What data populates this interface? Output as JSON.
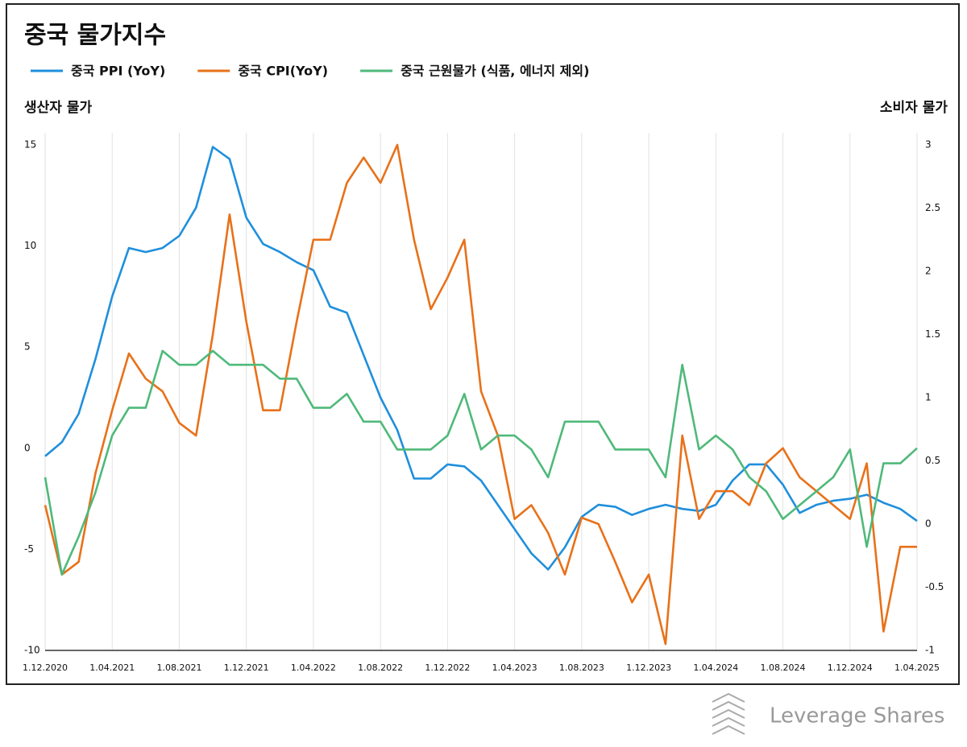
{
  "chart_data": {
    "type": "line",
    "title": "중국 물가지수",
    "y_label": "생산자 물가",
    "y2_label": "소비자 물가",
    "categories": [
      "1.12.2020",
      null,
      null,
      null,
      "1.04.2021",
      null,
      null,
      null,
      "1.08.2021",
      null,
      null,
      null,
      "1.12.2021",
      null,
      null,
      null,
      "1.04.2022",
      null,
      null,
      null,
      "1.08.2022",
      null,
      null,
      null,
      "1.12.2022",
      null,
      null,
      null,
      "1.04.2023",
      null,
      null,
      null,
      "1.08.2023",
      null,
      null,
      null,
      "1.12.2023",
      null,
      null,
      null,
      "1.04.2024",
      null,
      null,
      null,
      "1.08.2024",
      null,
      null,
      null,
      "1.12.2024",
      null,
      null,
      null,
      "1.04.2025"
    ],
    "series": [
      {
        "name": "중국 PPI (YoY)",
        "color": "#1f8fdc",
        "axis": "y",
        "values": [
          -0.4,
          0.3,
          1.7,
          4.4,
          7.5,
          9.9,
          9.7,
          9.9,
          10.5,
          11.9,
          14.9,
          14.3,
          11.4,
          10.1,
          9.7,
          9.2,
          8.8,
          7.0,
          6.7,
          4.6,
          2.5,
          0.9,
          -1.5,
          -1.5,
          -0.8,
          -0.9,
          -1.6,
          -2.8,
          -4.0,
          -5.2,
          -6.0,
          -4.9,
          -3.4,
          -2.8,
          -2.9,
          -3.3,
          -3.0,
          -2.8,
          -3.0,
          -3.1,
          -2.8,
          -1.6,
          -0.8,
          -0.8,
          -1.8,
          -3.2,
          -2.8,
          -2.6,
          -2.5,
          -2.3,
          -2.7,
          -3.0,
          -3.6
        ]
      },
      {
        "name": "중국 CPI(YoY)",
        "color": "#e8711a",
        "axis": "y2",
        "values": [
          0.15,
          -0.4,
          -0.3,
          0.4,
          0.9,
          1.35,
          1.15,
          1.05,
          0.8,
          0.7,
          1.5,
          2.45,
          1.6,
          0.9,
          0.9,
          1.6,
          2.25,
          2.25,
          2.7,
          2.9,
          2.7,
          3.0,
          2.25,
          1.7,
          1.95,
          2.25,
          1.05,
          0.7,
          0.04,
          0.15,
          -0.07,
          -0.4,
          0.05,
          0.0,
          -0.3,
          -0.62,
          -0.4,
          -0.95,
          0.7,
          0.04,
          0.26,
          0.26,
          0.15,
          0.48,
          0.6,
          0.37,
          0.26,
          0.15,
          0.04,
          0.48,
          -0.85,
          -0.18,
          -0.18
        ]
      },
      {
        "name": "중국 근원물가 (식품, 에너지 제외)",
        "color": "#4fb97a",
        "axis": "y2",
        "values": [
          0.37,
          -0.4,
          -0.1,
          0.25,
          0.7,
          0.92,
          0.92,
          1.37,
          1.26,
          1.26,
          1.37,
          1.26,
          1.26,
          1.26,
          1.15,
          1.15,
          0.92,
          0.92,
          1.03,
          0.81,
          0.81,
          0.59,
          0.59,
          0.59,
          0.7,
          1.03,
          0.59,
          0.7,
          0.7,
          0.59,
          0.37,
          0.81,
          0.81,
          0.81,
          0.59,
          0.59,
          0.59,
          0.37,
          1.26,
          0.59,
          0.7,
          0.59,
          0.37,
          0.26,
          0.04,
          0.15,
          0.26,
          0.37,
          0.59,
          -0.18,
          0.48,
          0.48,
          0.6
        ]
      }
    ],
    "ylim": [
      -10,
      15
    ],
    "yticks": [
      -10,
      -5,
      0,
      5,
      10,
      15
    ],
    "y2lim": [
      -1,
      3
    ],
    "y2ticks": [
      -1,
      -0.5,
      0,
      0.5,
      1,
      1.5,
      2,
      2.5,
      3
    ],
    "grid": true,
    "legend": "top"
  },
  "logo": "Leverage Shares"
}
